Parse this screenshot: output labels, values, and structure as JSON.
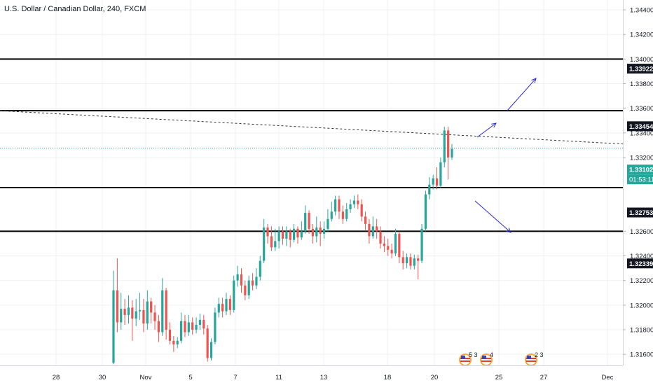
{
  "symbol_title": "U.S. Dollar / Canadian Dollar, 240, FXCM",
  "colors": {
    "up": "#26a69a",
    "down": "#ef5350",
    "grid": "#eef0f3",
    "level_line": "#000000",
    "arrow": "#2c2ccc",
    "trend": "#333333",
    "price_line": "#26a69a"
  },
  "chart_data": {
    "type": "candlestick",
    "title": "U.S. Dollar / Canadian Dollar, 240, FXCM",
    "ylim": [
      1.3151,
      1.3448
    ],
    "x_labels": [
      "28",
      "30",
      "Nov",
      "5",
      "7",
      "11",
      "13",
      "18",
      "20",
      "25",
      "27",
      "Dec"
    ],
    "y_ticks": [
      "1.34400",
      "1.34200",
      "1.34000",
      "1.33800",
      "1.33600",
      "1.33400",
      "1.33200",
      "1.32600",
      "1.32400",
      "1.32200",
      "1.32000",
      "1.31800",
      "1.31600"
    ],
    "horizontal_levels": [
      1.34,
      1.3358,
      1.32955,
      1.326
    ],
    "price_labels": [
      {
        "value": 1.33922,
        "text": "1.33922",
        "style": "dark"
      },
      {
        "value": 1.33454,
        "text": "1.33454",
        "style": "dark"
      },
      {
        "value": 1.33102,
        "text": "1.33102",
        "style": "green"
      },
      {
        "value": 1.32753,
        "text": "1.32753",
        "style": "dark"
      },
      {
        "value": 1.32339,
        "text": "1.32339",
        "style": "dark"
      }
    ],
    "countdown": "01:53:11",
    "trendline": [
      1.3358,
      1.3331
    ],
    "current_price": 1.33275,
    "candles": [
      [
        1.3153,
        1.3212,
        1.3228,
        1.3152
      ],
      [
        1.3212,
        1.3186,
        1.3238,
        1.3178
      ],
      [
        1.3186,
        1.3197,
        1.321,
        1.318
      ],
      [
        1.3197,
        1.3192,
        1.3205,
        1.3184
      ],
      [
        1.3192,
        1.3198,
        1.3208,
        1.3185
      ],
      [
        1.3198,
        1.3189,
        1.3204,
        1.3171
      ],
      [
        1.3189,
        1.3195,
        1.3205,
        1.3183
      ],
      [
        1.3195,
        1.3196,
        1.321,
        1.3188
      ],
      [
        1.3196,
        1.3185,
        1.3205,
        1.3178
      ],
      [
        1.3185,
        1.3203,
        1.3212,
        1.318
      ],
      [
        1.3203,
        1.3194,
        1.3206,
        1.3185
      ],
      [
        1.3194,
        1.3187,
        1.32,
        1.318
      ],
      [
        1.3187,
        1.3178,
        1.3192,
        1.317
      ],
      [
        1.3178,
        1.3212,
        1.3222,
        1.3175
      ],
      [
        1.3212,
        1.318,
        1.3214,
        1.3172
      ],
      [
        1.318,
        1.3171,
        1.3186,
        1.3168
      ],
      [
        1.3171,
        1.3168,
        1.3175,
        1.3162
      ],
      [
        1.3168,
        1.3171,
        1.3174,
        1.3165
      ],
      [
        1.3171,
        1.3187,
        1.3194,
        1.3169
      ],
      [
        1.3187,
        1.3178,
        1.3192,
        1.3174
      ],
      [
        1.3178,
        1.3186,
        1.3192,
        1.3175
      ],
      [
        1.3186,
        1.318,
        1.319,
        1.3176
      ],
      [
        1.318,
        1.3184,
        1.319,
        1.3177
      ],
      [
        1.3184,
        1.3188,
        1.3193,
        1.318
      ],
      [
        1.3188,
        1.3181,
        1.3192,
        1.3176
      ],
      [
        1.3181,
        1.3157,
        1.3184,
        1.3154
      ],
      [
        1.3157,
        1.317,
        1.3173,
        1.3155
      ],
      [
        1.317,
        1.3194,
        1.3198,
        1.3168
      ],
      [
        1.3194,
        1.3201,
        1.3206,
        1.319
      ],
      [
        1.3201,
        1.3195,
        1.3206,
        1.319
      ],
      [
        1.3195,
        1.3205,
        1.321,
        1.3192
      ],
      [
        1.3205,
        1.3196,
        1.3208,
        1.3192
      ],
      [
        1.3196,
        1.322,
        1.3224,
        1.3194
      ],
      [
        1.322,
        1.3225,
        1.3232,
        1.3215
      ],
      [
        1.3225,
        1.3216,
        1.323,
        1.321
      ],
      [
        1.3216,
        1.3208,
        1.322,
        1.3204
      ],
      [
        1.3208,
        1.322,
        1.3224,
        1.3205
      ],
      [
        1.322,
        1.3216,
        1.3226,
        1.3212
      ],
      [
        1.3216,
        1.3223,
        1.323,
        1.3213
      ],
      [
        1.3223,
        1.3236,
        1.324,
        1.322
      ],
      [
        1.3236,
        1.3263,
        1.327,
        1.3234
      ],
      [
        1.3263,
        1.3256,
        1.3266,
        1.325
      ],
      [
        1.3256,
        1.3247,
        1.3264,
        1.3244
      ],
      [
        1.3247,
        1.3252,
        1.3262,
        1.3244
      ],
      [
        1.3252,
        1.326,
        1.3264,
        1.3246
      ],
      [
        1.326,
        1.3254,
        1.3264,
        1.3249
      ],
      [
        1.3254,
        1.326,
        1.3264,
        1.3248
      ],
      [
        1.326,
        1.3253,
        1.3262,
        1.3247
      ],
      [
        1.3253,
        1.3262,
        1.3266,
        1.3251
      ],
      [
        1.3262,
        1.3255,
        1.3264,
        1.325
      ],
      [
        1.3255,
        1.326,
        1.3268,
        1.3253
      ],
      [
        1.326,
        1.3275,
        1.3281,
        1.3258
      ],
      [
        1.3275,
        1.3262,
        1.3277,
        1.3258
      ],
      [
        1.3262,
        1.3256,
        1.3266,
        1.325
      ],
      [
        1.3256,
        1.3263,
        1.3272,
        1.3251
      ],
      [
        1.3263,
        1.3258,
        1.3268,
        1.3248
      ],
      [
        1.3258,
        1.3262,
        1.3268,
        1.3254
      ],
      [
        1.3262,
        1.327,
        1.3278,
        1.326
      ],
      [
        1.327,
        1.3276,
        1.3284,
        1.3268
      ],
      [
        1.3276,
        1.3286,
        1.3289,
        1.3273
      ],
      [
        1.3286,
        1.3276,
        1.3289,
        1.327
      ],
      [
        1.3276,
        1.327,
        1.3281,
        1.3266
      ],
      [
        1.327,
        1.3278,
        1.3283,
        1.3268
      ],
      [
        1.3278,
        1.3282,
        1.3286,
        1.3275
      ],
      [
        1.3282,
        1.3285,
        1.3289,
        1.3279
      ],
      [
        1.3285,
        1.3282,
        1.329,
        1.3278
      ],
      [
        1.3282,
        1.3272,
        1.3286,
        1.3268
      ],
      [
        1.3272,
        1.3266,
        1.3276,
        1.3261
      ],
      [
        1.3266,
        1.3256,
        1.327,
        1.325
      ],
      [
        1.3256,
        1.3264,
        1.3272,
        1.3254
      ],
      [
        1.3264,
        1.326,
        1.327,
        1.3254
      ],
      [
        1.326,
        1.325,
        1.3264,
        1.3246
      ],
      [
        1.325,
        1.3248,
        1.3256,
        1.3243
      ],
      [
        1.3248,
        1.3245,
        1.3254,
        1.324
      ],
      [
        1.3245,
        1.3242,
        1.325,
        1.3238
      ],
      [
        1.3242,
        1.3258,
        1.3262,
        1.324
      ],
      [
        1.3258,
        1.3239,
        1.326,
        1.3234
      ],
      [
        1.3239,
        1.3234,
        1.3244,
        1.3229
      ],
      [
        1.3234,
        1.3239,
        1.3242,
        1.323
      ],
      [
        1.3239,
        1.3232,
        1.3242,
        1.3229
      ],
      [
        1.3232,
        1.3238,
        1.3241,
        1.3229
      ],
      [
        1.3238,
        1.3236,
        1.3241,
        1.3221
      ],
      [
        1.3236,
        1.3262,
        1.3266,
        1.3234
      ],
      [
        1.3262,
        1.329,
        1.3293,
        1.326
      ],
      [
        1.329,
        1.3298,
        1.3304,
        1.3286
      ],
      [
        1.3298,
        1.3303,
        1.3306,
        1.3294
      ],
      [
        1.3303,
        1.3297,
        1.3312,
        1.3294
      ],
      [
        1.3297,
        1.3316,
        1.332,
        1.3295
      ],
      [
        1.3316,
        1.3342,
        1.3345,
        1.3312
      ],
      [
        1.3342,
        1.332,
        1.3345,
        1.3302
      ],
      [
        1.332,
        1.3327,
        1.3331,
        1.3318
      ]
    ]
  },
  "events": [
    {
      "count": "5 3"
    },
    {
      "count": "4"
    },
    {
      "count": "2 3"
    }
  ]
}
